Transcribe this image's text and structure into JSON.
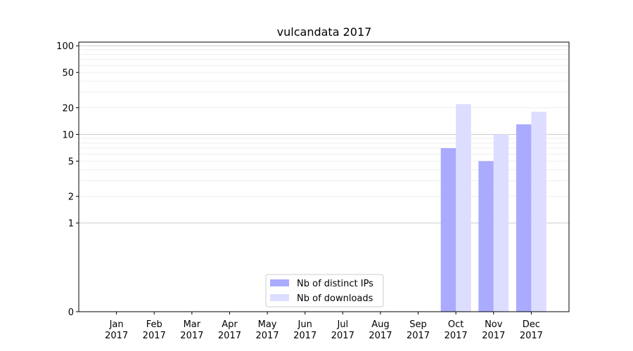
{
  "chart_data": {
    "type": "bar",
    "title": "vulcandata 2017",
    "xlabel": "",
    "ylabel": "",
    "yscale": "symlog",
    "ylim": [
      0,
      110
    ],
    "categories": [
      {
        "month": "Jan",
        "year": "2017"
      },
      {
        "month": "Feb",
        "year": "2017"
      },
      {
        "month": "Mar",
        "year": "2017"
      },
      {
        "month": "Apr",
        "year": "2017"
      },
      {
        "month": "May",
        "year": "2017"
      },
      {
        "month": "Jun",
        "year": "2017"
      },
      {
        "month": "Jul",
        "year": "2017"
      },
      {
        "month": "Aug",
        "year": "2017"
      },
      {
        "month": "Sep",
        "year": "2017"
      },
      {
        "month": "Oct",
        "year": "2017"
      },
      {
        "month": "Nov",
        "year": "2017"
      },
      {
        "month": "Dec",
        "year": "2017"
      }
    ],
    "y_ticks": [
      "0",
      "1",
      "2",
      "5",
      "10",
      "20",
      "50",
      "100"
    ],
    "series": [
      {
        "name": "Nb of distinct IPs",
        "color": "#aaaaff",
        "values": [
          0,
          0,
          0,
          0,
          0,
          0,
          0,
          0,
          0,
          7,
          5,
          13
        ]
      },
      {
        "name": "Nb of downloads",
        "color": "#ddddff",
        "values": [
          0,
          0,
          0,
          0,
          0,
          0,
          0,
          0,
          0,
          22,
          10,
          18
        ]
      }
    ],
    "grid": true,
    "legend_position": "bottom-center"
  }
}
